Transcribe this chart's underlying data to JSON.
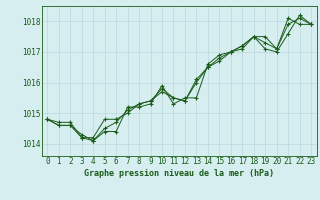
{
  "title": "Graphe pression niveau de la mer (hPa)",
  "bg_color": "#d6eef0",
  "grid_color": "#b8d8dc",
  "line_color": "#1a5c1a",
  "x_ticks": [
    0,
    1,
    2,
    3,
    4,
    5,
    6,
    7,
    8,
    9,
    10,
    11,
    12,
    13,
    14,
    15,
    16,
    17,
    18,
    19,
    20,
    21,
    22,
    23
  ],
  "y_ticks": [
    1014,
    1015,
    1016,
    1017,
    1018
  ],
  "ylim": [
    1013.6,
    1018.5
  ],
  "xlim": [
    -0.5,
    23.5
  ],
  "series1": [
    1014.8,
    1014.7,
    1014.7,
    1014.2,
    1014.2,
    1014.8,
    1014.8,
    1015.0,
    1015.3,
    1015.4,
    1015.7,
    1015.5,
    1015.4,
    1016.1,
    1016.5,
    1016.7,
    1017.0,
    1017.1,
    1017.5,
    1017.5,
    1017.1,
    1018.1,
    1017.9,
    1017.9
  ],
  "series2": [
    1014.8,
    1014.6,
    1014.6,
    1014.3,
    1014.1,
    1014.4,
    1014.4,
    1015.2,
    1015.2,
    1015.3,
    1015.9,
    1015.3,
    1015.5,
    1015.5,
    1016.6,
    1016.9,
    1017.0,
    1017.2,
    1017.5,
    1017.1,
    1017.0,
    1017.6,
    1018.2,
    1017.9
  ],
  "series3": [
    1014.8,
    1014.6,
    1014.6,
    1014.2,
    1014.1,
    1014.5,
    1014.7,
    1015.1,
    1015.3,
    1015.4,
    1015.8,
    1015.5,
    1015.4,
    1016.0,
    1016.5,
    1016.8,
    1017.0,
    1017.2,
    1017.5,
    1017.3,
    1017.1,
    1017.9,
    1018.1,
    1017.9
  ],
  "xlabel_fontsize": 5.5,
  "ylabel_fontsize": 5.5,
  "title_fontsize": 6.0,
  "linewidth": 0.7,
  "markersize": 2.5
}
